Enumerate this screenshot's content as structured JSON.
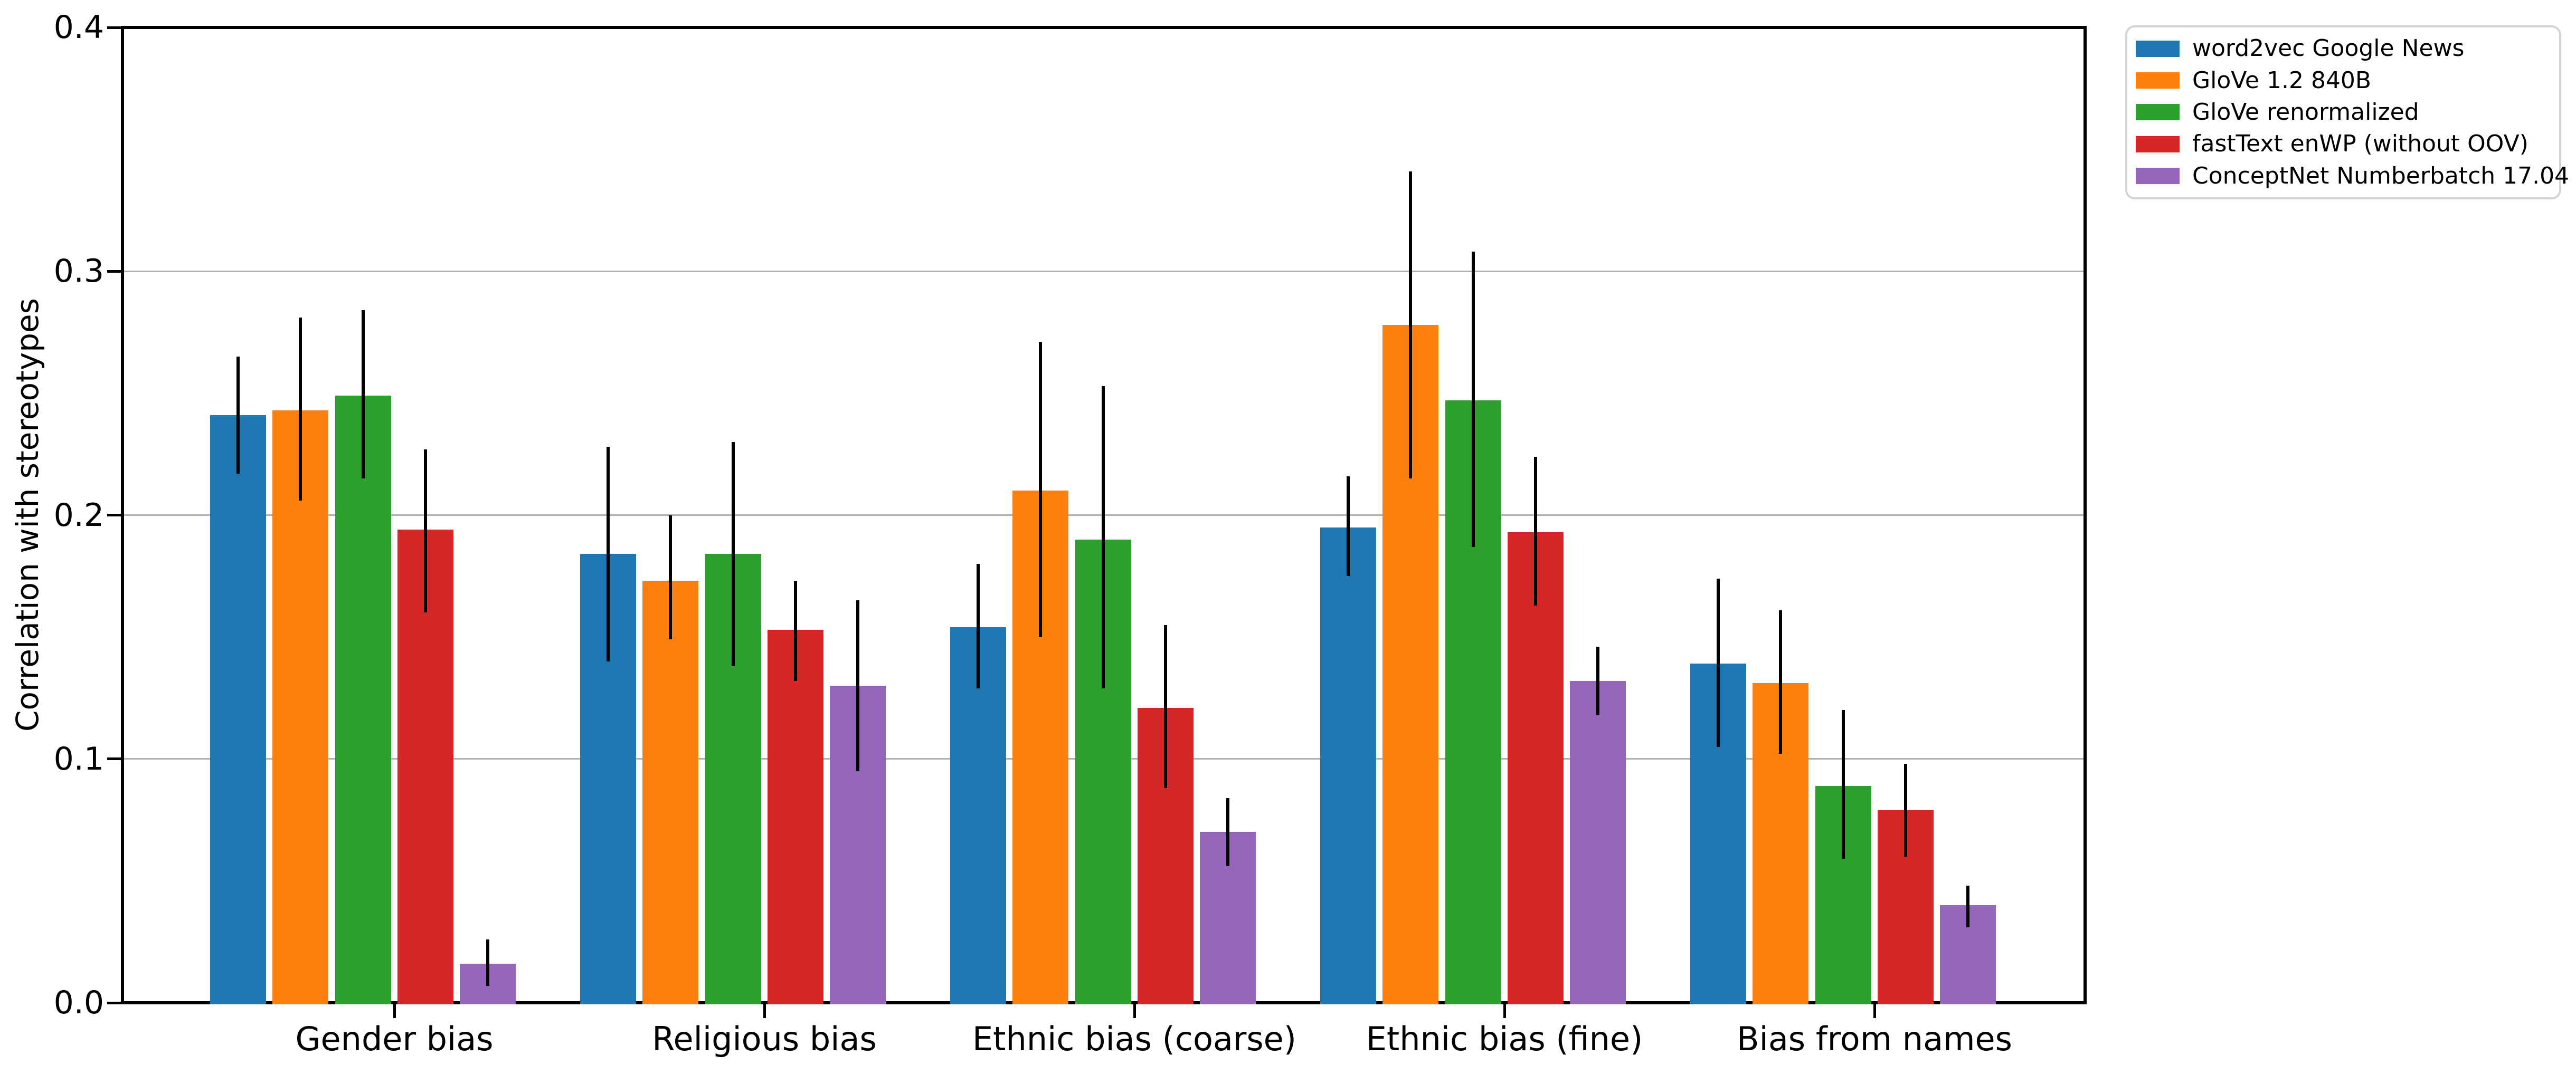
{
  "chart_data": {
    "type": "bar",
    "title": "",
    "xlabel": "",
    "ylabel": "Correlation with stereotypes",
    "ylim": [
      0.0,
      0.4
    ],
    "yticks": [
      0.0,
      0.1,
      0.2,
      0.3,
      0.4
    ],
    "ytick_labels": [
      "0.0",
      "0.1",
      "0.2",
      "0.3",
      "0.4"
    ],
    "grid": true,
    "grid_color": "#b0b0b0",
    "legend_position": "upper right outside",
    "categories": [
      "Gender bias",
      "Religious bias",
      "Ethnic bias (coarse)",
      "Ethnic bias (fine)",
      "Bias from names"
    ],
    "series": [
      {
        "name": "word2vec Google News",
        "color": "#1f77b4",
        "values": [
          0.241,
          0.184,
          0.154,
          0.195,
          0.139
        ],
        "err_low": [
          0.217,
          0.14,
          0.129,
          0.175,
          0.105
        ],
        "err_high": [
          0.265,
          0.228,
          0.18,
          0.216,
          0.174
        ]
      },
      {
        "name": "GloVe 1.2 840B",
        "color": "#ff7f0e",
        "values": [
          0.243,
          0.173,
          0.21,
          0.278,
          0.131
        ],
        "err_low": [
          0.206,
          0.149,
          0.15,
          0.215,
          0.102
        ],
        "err_high": [
          0.281,
          0.2,
          0.271,
          0.341,
          0.161
        ]
      },
      {
        "name": "GloVe renormalized",
        "color": "#2ca02c",
        "values": [
          0.249,
          0.184,
          0.19,
          0.247,
          0.089
        ],
        "err_low": [
          0.215,
          0.138,
          0.129,
          0.187,
          0.059
        ],
        "err_high": [
          0.284,
          0.23,
          0.253,
          0.308,
          0.12
        ]
      },
      {
        "name": "fastText enWP (without OOV)",
        "color": "#d62728",
        "values": [
          0.194,
          0.153,
          0.121,
          0.193,
          0.079
        ],
        "err_low": [
          0.16,
          0.132,
          0.088,
          0.163,
          0.06
        ],
        "err_high": [
          0.227,
          0.173,
          0.155,
          0.224,
          0.098
        ]
      },
      {
        "name": "ConceptNet Numberbatch 17.04",
        "color": "#9467bd",
        "values": [
          0.016,
          0.13,
          0.07,
          0.132,
          0.04
        ],
        "err_low": [
          0.007,
          0.095,
          0.056,
          0.118,
          0.031
        ],
        "err_high": [
          0.026,
          0.165,
          0.084,
          0.146,
          0.048
        ]
      }
    ]
  }
}
